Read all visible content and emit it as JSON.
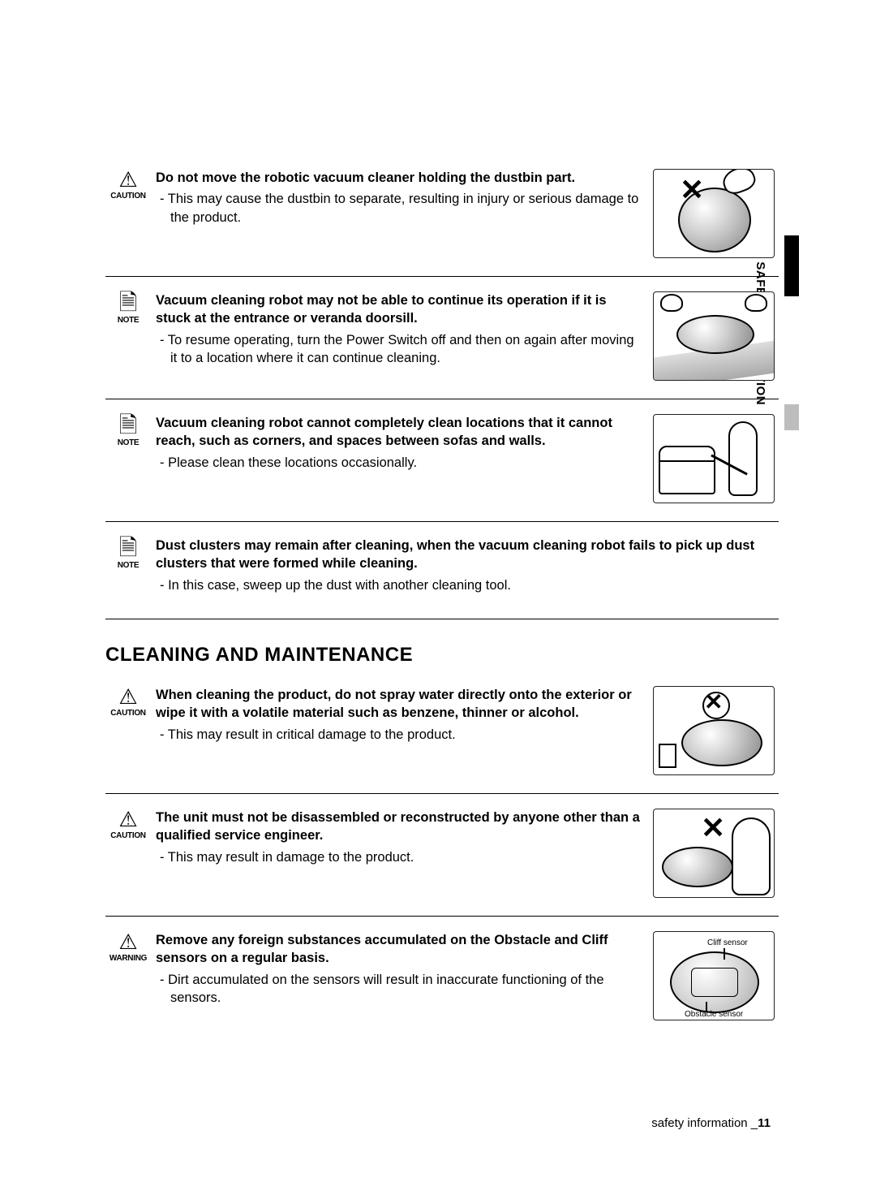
{
  "sideTab": "01 SAFETY INFORMATION",
  "labels": {
    "caution": "CAUTION",
    "note": "NOTE",
    "warning": "WARNING"
  },
  "items": [
    {
      "type": "caution",
      "title": "Do not move the robotic vacuum cleaner holding the dustbin part.",
      "bullet": "This may cause the dustbin to separate, resulting in injury or serious damage to the product.",
      "illus": "dustbin-x",
      "sensorLabels": null
    },
    {
      "type": "note",
      "title": "Vacuum cleaning robot may not be able to continue its operation if it is stuck at the entrance or veranda doorsill.",
      "bullet": "To resume operating, turn the Power Switch off and then on again after moving it to a location where it can continue cleaning.",
      "illus": "stuck-sill",
      "sensorLabels": null
    },
    {
      "type": "note",
      "title": "Vacuum cleaning robot cannot completely clean locations that it cannot reach, such as corners, and spaces between sofas and walls.",
      "bullet": "Please clean these locations occasionally.",
      "illus": "sofa-clean",
      "sensorLabels": null
    },
    {
      "type": "note",
      "title": "Dust clusters may remain after cleaning, when the vacuum cleaning robot fails to pick up dust clusters that were formed while cleaning.",
      "bullet": "In this case, sweep up the dust with another cleaning tool.",
      "illus": null,
      "sensorLabels": null
    }
  ],
  "sectionHeading": "CLEANING AND MAINTENANCE",
  "items2": [
    {
      "type": "caution",
      "title": "When cleaning the product, do not spray water directly onto the exterior or wipe it with a volatile material such as benzene, thinner or alcohol.",
      "bullet": "This may result in critical damage to the product.",
      "illus": "spray-x",
      "sensorLabels": null
    },
    {
      "type": "caution",
      "title": "The unit must not be disassembled or reconstructed by anyone other than a qualified service engineer.",
      "bullet": "This may result in damage to the product.",
      "illus": "disassemble-x",
      "sensorLabels": null
    },
    {
      "type": "warning",
      "title": "Remove any foreign substances accumulated on the Obstacle and Cliff sensors on a regular basis.",
      "bullet": "Dirt accumulated on the sensors will result in inaccurate functioning of the sensors.",
      "illus": "sensors",
      "sensorLabels": {
        "cliff": "Cliff sensor",
        "obstacle": "Obstacle sensor"
      }
    }
  ],
  "footer": {
    "text": "safety information _",
    "page": "11"
  }
}
